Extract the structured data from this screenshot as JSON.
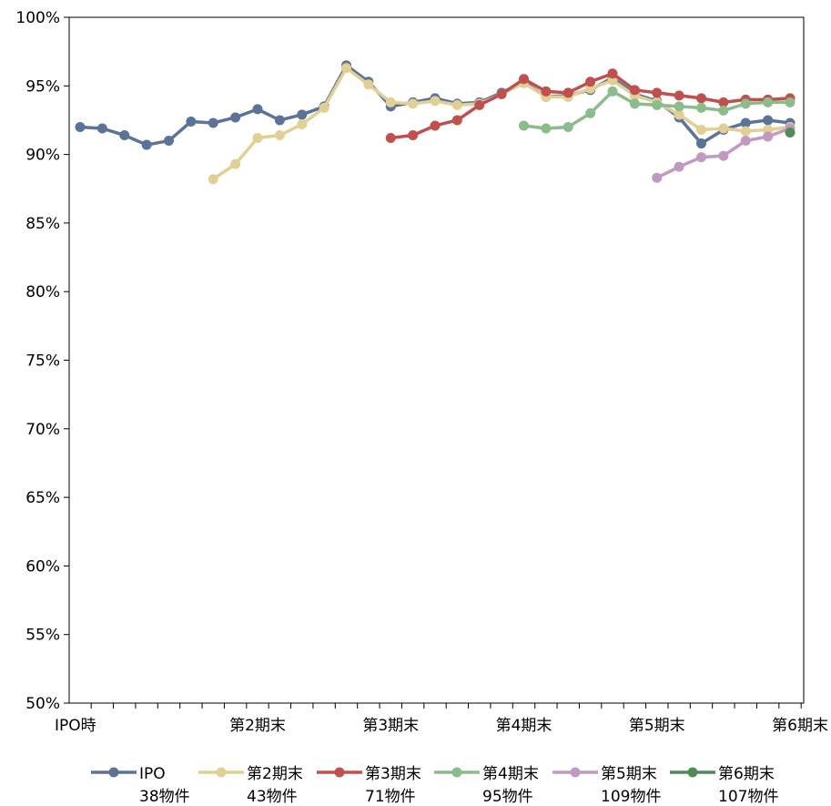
{
  "chart_data": {
    "type": "line",
    "ylim": [
      0.5,
      1.0
    ],
    "yticks": [
      "100%",
      "95%",
      "90%",
      "85%",
      "80%",
      "75%",
      "70%",
      "65%",
      "60%",
      "55%",
      "50%"
    ],
    "x_count": 33,
    "xticks": [
      {
        "i": 0,
        "label": "IPO時"
      },
      {
        "i": 8,
        "label": "第2期末"
      },
      {
        "i": 14,
        "label": "第3期末"
      },
      {
        "i": 20,
        "label": "第4期末"
      },
      {
        "i": 26,
        "label": "第5期末"
      },
      {
        "i": 32,
        "label": "第6期末"
      }
    ],
    "grid": false,
    "legend_position": "bottom",
    "series": [
      {
        "name": "IPO",
        "sublabel": "38物件",
        "color": "#5b7397",
        "start": 0,
        "values": [
          0.92,
          0.919,
          0.914,
          0.907,
          0.91,
          0.924,
          0.923,
          0.927,
          0.933,
          0.925,
          0.929,
          0.935,
          0.965,
          0.953,
          0.935,
          0.938,
          0.941,
          0.937,
          0.938,
          0.945,
          0.953,
          0.942,
          0.943,
          0.947,
          0.956,
          0.944,
          0.939,
          0.927,
          0.908,
          0.918,
          0.923,
          0.925,
          0.923
        ]
      },
      {
        "name": "第2期末",
        "sublabel": "43物件",
        "color": "#e2cf94",
        "start": 6,
        "values": [
          0.882,
          0.893,
          0.912,
          0.914,
          0.922,
          0.934,
          0.963,
          0.951,
          0.938,
          0.937,
          0.939,
          0.936,
          0.937,
          0.944,
          0.952,
          0.942,
          0.942,
          0.948,
          0.954,
          0.943,
          0.938,
          0.929,
          0.918,
          0.919,
          0.917,
          0.918,
          0.92
        ]
      },
      {
        "name": "第3期末",
        "sublabel": "71物件",
        "color": "#c0504d",
        "start": 14,
        "values": [
          0.912,
          0.914,
          0.921,
          0.925,
          0.936,
          0.944,
          0.955,
          0.946,
          0.945,
          0.953,
          0.959,
          0.947,
          0.945,
          0.943,
          0.941,
          0.938,
          0.94,
          0.94,
          0.941
        ]
      },
      {
        "name": "第4期末",
        "sublabel": "95物件",
        "color": "#8cbb8c",
        "start": 20,
        "values": [
          0.921,
          0.919,
          0.92,
          0.93,
          0.946,
          0.937,
          0.936,
          0.935,
          0.934,
          0.932,
          0.937,
          0.938,
          0.938
        ]
      },
      {
        "name": "第5期末",
        "sublabel": "109物件",
        "color": "#c09ac0",
        "start": 26,
        "values": [
          0.883,
          0.891,
          0.898,
          0.899,
          0.91,
          0.913,
          0.919
        ]
      },
      {
        "name": "第6期末",
        "sublabel": "107物件",
        "color": "#4f8c5a",
        "start": 32,
        "values": [
          0.916
        ]
      }
    ]
  }
}
